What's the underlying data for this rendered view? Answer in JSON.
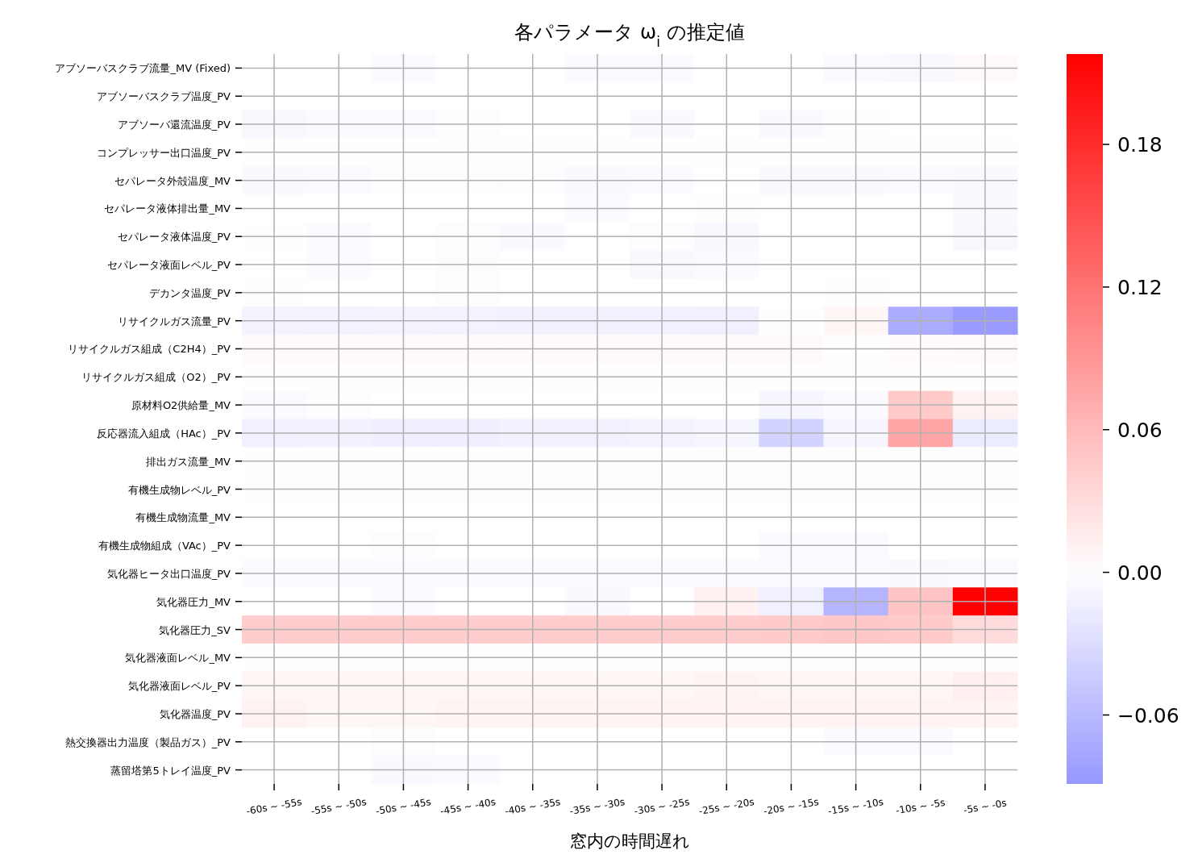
{
  "chart_data": {
    "type": "heatmap",
    "title": "各パラメータ ω$_{i}$ の推定値",
    "xlabel": "窓内の時間遅れ",
    "categories": [
      "-60s ~ -55s",
      "-55s ~ -50s",
      "-50s ~ -45s",
      "-45s ~ -40s",
      "-40s ~ -35s",
      "-35s ~ -30s",
      "-30s ~ -25s",
      "-25s ~ -20s",
      "-20s ~ -15s",
      "-15s ~ -10s",
      "-10s ~ -5s",
      "-5s ~ -0s"
    ],
    "y_categories": [
      "アブソーバスクラブ流量_MV (Fixed)",
      "アブソーバスクラブ温度_PV",
      "アブソーバ還流温度_PV",
      "コンプレッサー出口温度_PV",
      "セパレータ外殻温度_MV",
      "セパレータ液体排出量_MV",
      "セパレータ液体温度_PV",
      "セパレータ液面レベル_PV",
      "デカンタ温度_PV",
      "リサイクルガス流量_PV",
      "リサイクルガス組成（C2H4）_PV",
      "リサイクルガス組成（O2）_PV",
      "原材料O2供給量_MV",
      "反応器流入組成（HAc）_PV",
      "排出ガス流量_MV",
      "有機生成物レベル_PV",
      "有機生成物流量_MV",
      "有機生成物組成（VAc）_PV",
      "気化器ヒータ出口温度_PV",
      "気化器圧力_MV",
      "気化器圧力_SV",
      "気化器液面レベル_MV",
      "気化器液面レベル_PV",
      "気化器温度_PV",
      "熱交換器出力温度（製品ガス）_PV",
      "蒸留塔第5トレイ温度_PV"
    ],
    "cells": [
      [
        0,
        0,
        -0.003,
        0,
        0,
        -0.003,
        -0.003,
        0,
        0,
        -0.003,
        -0.006,
        0.005
      ],
      [
        0,
        0,
        0,
        0,
        0,
        0,
        0,
        0,
        0,
        0,
        0,
        0
      ],
      [
        -0.006,
        -0.003,
        -0.004,
        -0.002,
        0,
        0,
        -0.005,
        0,
        -0.005,
        -0.002,
        0,
        0
      ],
      [
        0.002,
        0.002,
        0.002,
        0.002,
        0.002,
        0.002,
        0.002,
        0.002,
        0.002,
        0.002,
        0.002,
        0.002
      ],
      [
        -0.005,
        -0.004,
        -0.002,
        -0.002,
        -0.002,
        -0.005,
        -0.003,
        0,
        -0.005,
        -0.005,
        -0.003,
        -0.005
      ],
      [
        0,
        0,
        0,
        0,
        0,
        -0.003,
        0,
        0.001,
        0,
        0,
        0,
        -0.005
      ],
      [
        0.001,
        -0.003,
        0,
        -0.002,
        -0.005,
        0,
        -0.002,
        -0.006,
        0,
        0,
        0,
        -0.006
      ],
      [
        0,
        -0.003,
        0,
        -0.002,
        0,
        0,
        -0.006,
        -0.004,
        0,
        0,
        0,
        0
      ],
      [
        0.001,
        0,
        0,
        -0.002,
        0,
        0,
        0,
        0,
        0,
        0.001,
        0,
        0
      ],
      [
        -0.009,
        -0.01,
        -0.009,
        -0.01,
        -0.011,
        -0.011,
        -0.012,
        -0.013,
        0.001,
        0.008,
        -0.071,
        -0.086
      ],
      [
        0.004,
        0.004,
        0.004,
        0.004,
        0.004,
        0.004,
        0.004,
        0.004,
        0.004,
        0.001,
        0.003,
        0.005
      ],
      [
        0.002,
        0.002,
        0.002,
        0.002,
        0.002,
        0.002,
        0.002,
        0.002,
        0.002,
        0.002,
        0.002,
        0.002
      ],
      [
        -0.004,
        -0.002,
        0,
        0,
        0,
        0,
        0,
        0,
        -0.008,
        -0.003,
        0.045,
        0.011
      ],
      [
        -0.013,
        -0.011,
        -0.014,
        -0.014,
        -0.011,
        -0.011,
        -0.009,
        -0.008,
        -0.038,
        -0.008,
        0.077,
        -0.016
      ],
      [
        0.001,
        0.001,
        0.001,
        0.001,
        0.001,
        0.001,
        0.001,
        0.001,
        0.001,
        0.001,
        0.001,
        0.001
      ],
      [
        0.001,
        0.001,
        0.001,
        0.001,
        0.001,
        0.001,
        0.001,
        0.001,
        0.001,
        0.001,
        0.001,
        0.001
      ],
      [
        0,
        0,
        0,
        0,
        0,
        0,
        0,
        0,
        0,
        0,
        0,
        0
      ],
      [
        0,
        0,
        -0.002,
        0,
        0,
        0,
        0,
        0,
        -0.003,
        -0.004,
        0,
        0
      ],
      [
        -0.004,
        -0.004,
        -0.004,
        -0.004,
        -0.004,
        -0.004,
        -0.004,
        -0.004,
        -0.004,
        -0.004,
        -0.005,
        -0.004
      ],
      [
        0,
        0,
        -0.004,
        0,
        0,
        -0.005,
        0,
        0.012,
        -0.013,
        -0.064,
        0.05,
        0.218
      ],
      [
        0.043,
        0.043,
        0.043,
        0.043,
        0.043,
        0.043,
        0.043,
        0.043,
        0.045,
        0.048,
        0.045,
        0.03
      ],
      [
        0.002,
        0.002,
        0.002,
        0.002,
        0.002,
        0.002,
        0.002,
        0.002,
        0.002,
        0.002,
        0.002,
        0.002
      ],
      [
        0.008,
        0.008,
        0.008,
        0.008,
        0.008,
        0.008,
        0.008,
        0.009,
        0.008,
        0.008,
        0.008,
        0.014
      ],
      [
        0.011,
        0.008,
        0.008,
        0.009,
        0.009,
        0.009,
        0.01,
        0.01,
        0.01,
        0.01,
        0.01,
        0.01
      ],
      [
        0,
        0,
        -0.002,
        0,
        0,
        0,
        0,
        0,
        0,
        -0.004,
        -0.004,
        0
      ],
      [
        0,
        0,
        -0.005,
        -0.003,
        0,
        0,
        0,
        0,
        0,
        0,
        0,
        0
      ]
    ],
    "clim": [
      -0.089,
      0.218
    ],
    "cticks": [
      {
        "value": -0.06,
        "label": "−0.06"
      },
      {
        "value": 0,
        "label": "0.00"
      },
      0.06,
      0.12,
      0.18
    ],
    "grid": true
  }
}
